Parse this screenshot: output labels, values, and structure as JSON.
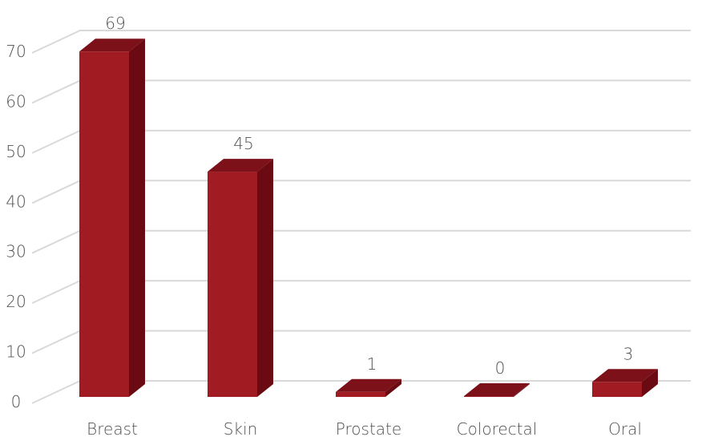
{
  "chart_data": {
    "type": "bar",
    "style": "3d-column",
    "categories": [
      "Breast",
      "Skin",
      "Prostate",
      "Colorectal",
      "Oral"
    ],
    "values": [
      69,
      45,
      1,
      0,
      3
    ],
    "data_labels": [
      "69",
      "45",
      "1",
      "0",
      "3"
    ],
    "ylim": [
      0,
      70
    ],
    "yticks": [
      0,
      10,
      20,
      30,
      40,
      50,
      60,
      70
    ],
    "ytick_labels": [
      "0",
      "10",
      "20",
      "30",
      "40",
      "50",
      "60",
      "70"
    ],
    "grid": true,
    "legend": "none",
    "colors": {
      "bar_front": "#a11b22",
      "bar_side": "#6b0a13",
      "bar_top": "#7c1119",
      "grid": "#d9d9d9",
      "text": "#505050"
    }
  }
}
